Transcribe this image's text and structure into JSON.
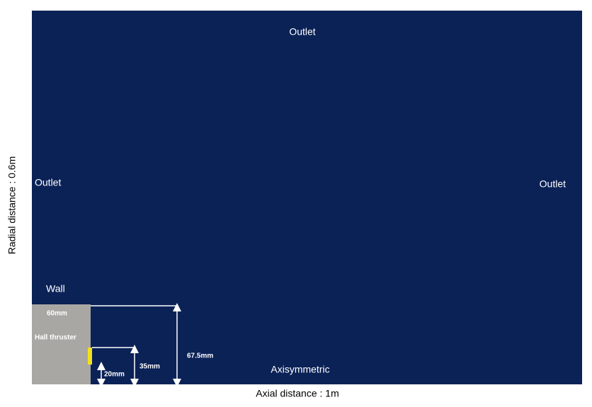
{
  "domain": {
    "outlet_top": "Outlet",
    "outlet_left": "Outlet",
    "outlet_right": "Outlet",
    "wall": "Wall",
    "axisymmetric": "Axisymmetric"
  },
  "thruster": {
    "label": "Hall thruster",
    "height": "60mm"
  },
  "dimensions": {
    "inner": "20mm",
    "middle": "35mm",
    "outer": "67.5mm"
  },
  "axes": {
    "x_label": "Axial distance : 1m",
    "y_label": "Radial distance : 0.6m"
  }
}
